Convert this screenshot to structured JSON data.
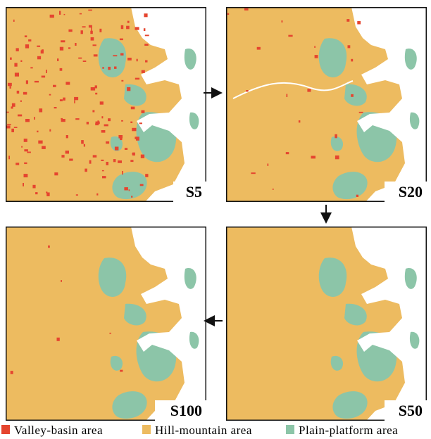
{
  "panels": [
    {
      "label": "S5"
    },
    {
      "label": "S20"
    },
    {
      "label": "S50"
    },
    {
      "label": "S100"
    }
  ],
  "legend": {
    "items": [
      {
        "label": "Valley-basin area",
        "color": "#e5452f"
      },
      {
        "label": "Hill-mountain area",
        "color": "#edbb60"
      },
      {
        "label": "Plain-platform area",
        "color": "#8cc5a8"
      }
    ]
  }
}
